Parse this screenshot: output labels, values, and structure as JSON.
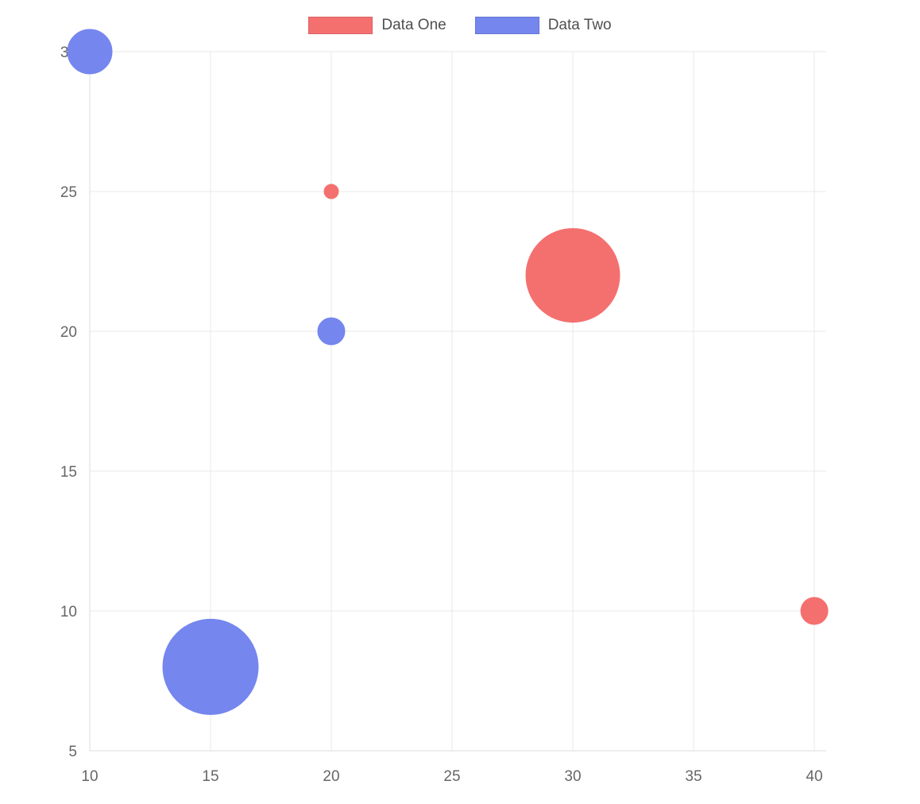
{
  "chart_data": {
    "type": "bubble",
    "title": "",
    "legend_position": "top",
    "grid": true,
    "axes": {
      "x": {
        "min": 10,
        "max": 40,
        "ticks": [
          10,
          15,
          20,
          25,
          30,
          35,
          40
        ]
      },
      "y": {
        "min": 5,
        "max": 30,
        "ticks": [
          5,
          10,
          15,
          20,
          25,
          30
        ]
      }
    },
    "series": [
      {
        "name": "Data One",
        "color": "#f4706f",
        "points": [
          {
            "x": 20,
            "y": 25,
            "r": 9
          },
          {
            "x": 30,
            "y": 22,
            "r": 59
          },
          {
            "x": 40,
            "y": 10,
            "r": 17
          }
        ]
      },
      {
        "name": "Data Two",
        "color": "#7586ee",
        "points": [
          {
            "x": 10,
            "y": 30,
            "r": 28
          },
          {
            "x": 20,
            "y": 20,
            "r": 17
          },
          {
            "x": 15,
            "y": 8,
            "r": 60
          }
        ]
      }
    ],
    "style": {
      "grid_color": "#e9e9e9",
      "axis_border_color": "#dcdcdc",
      "tick_color": "#666666"
    }
  }
}
